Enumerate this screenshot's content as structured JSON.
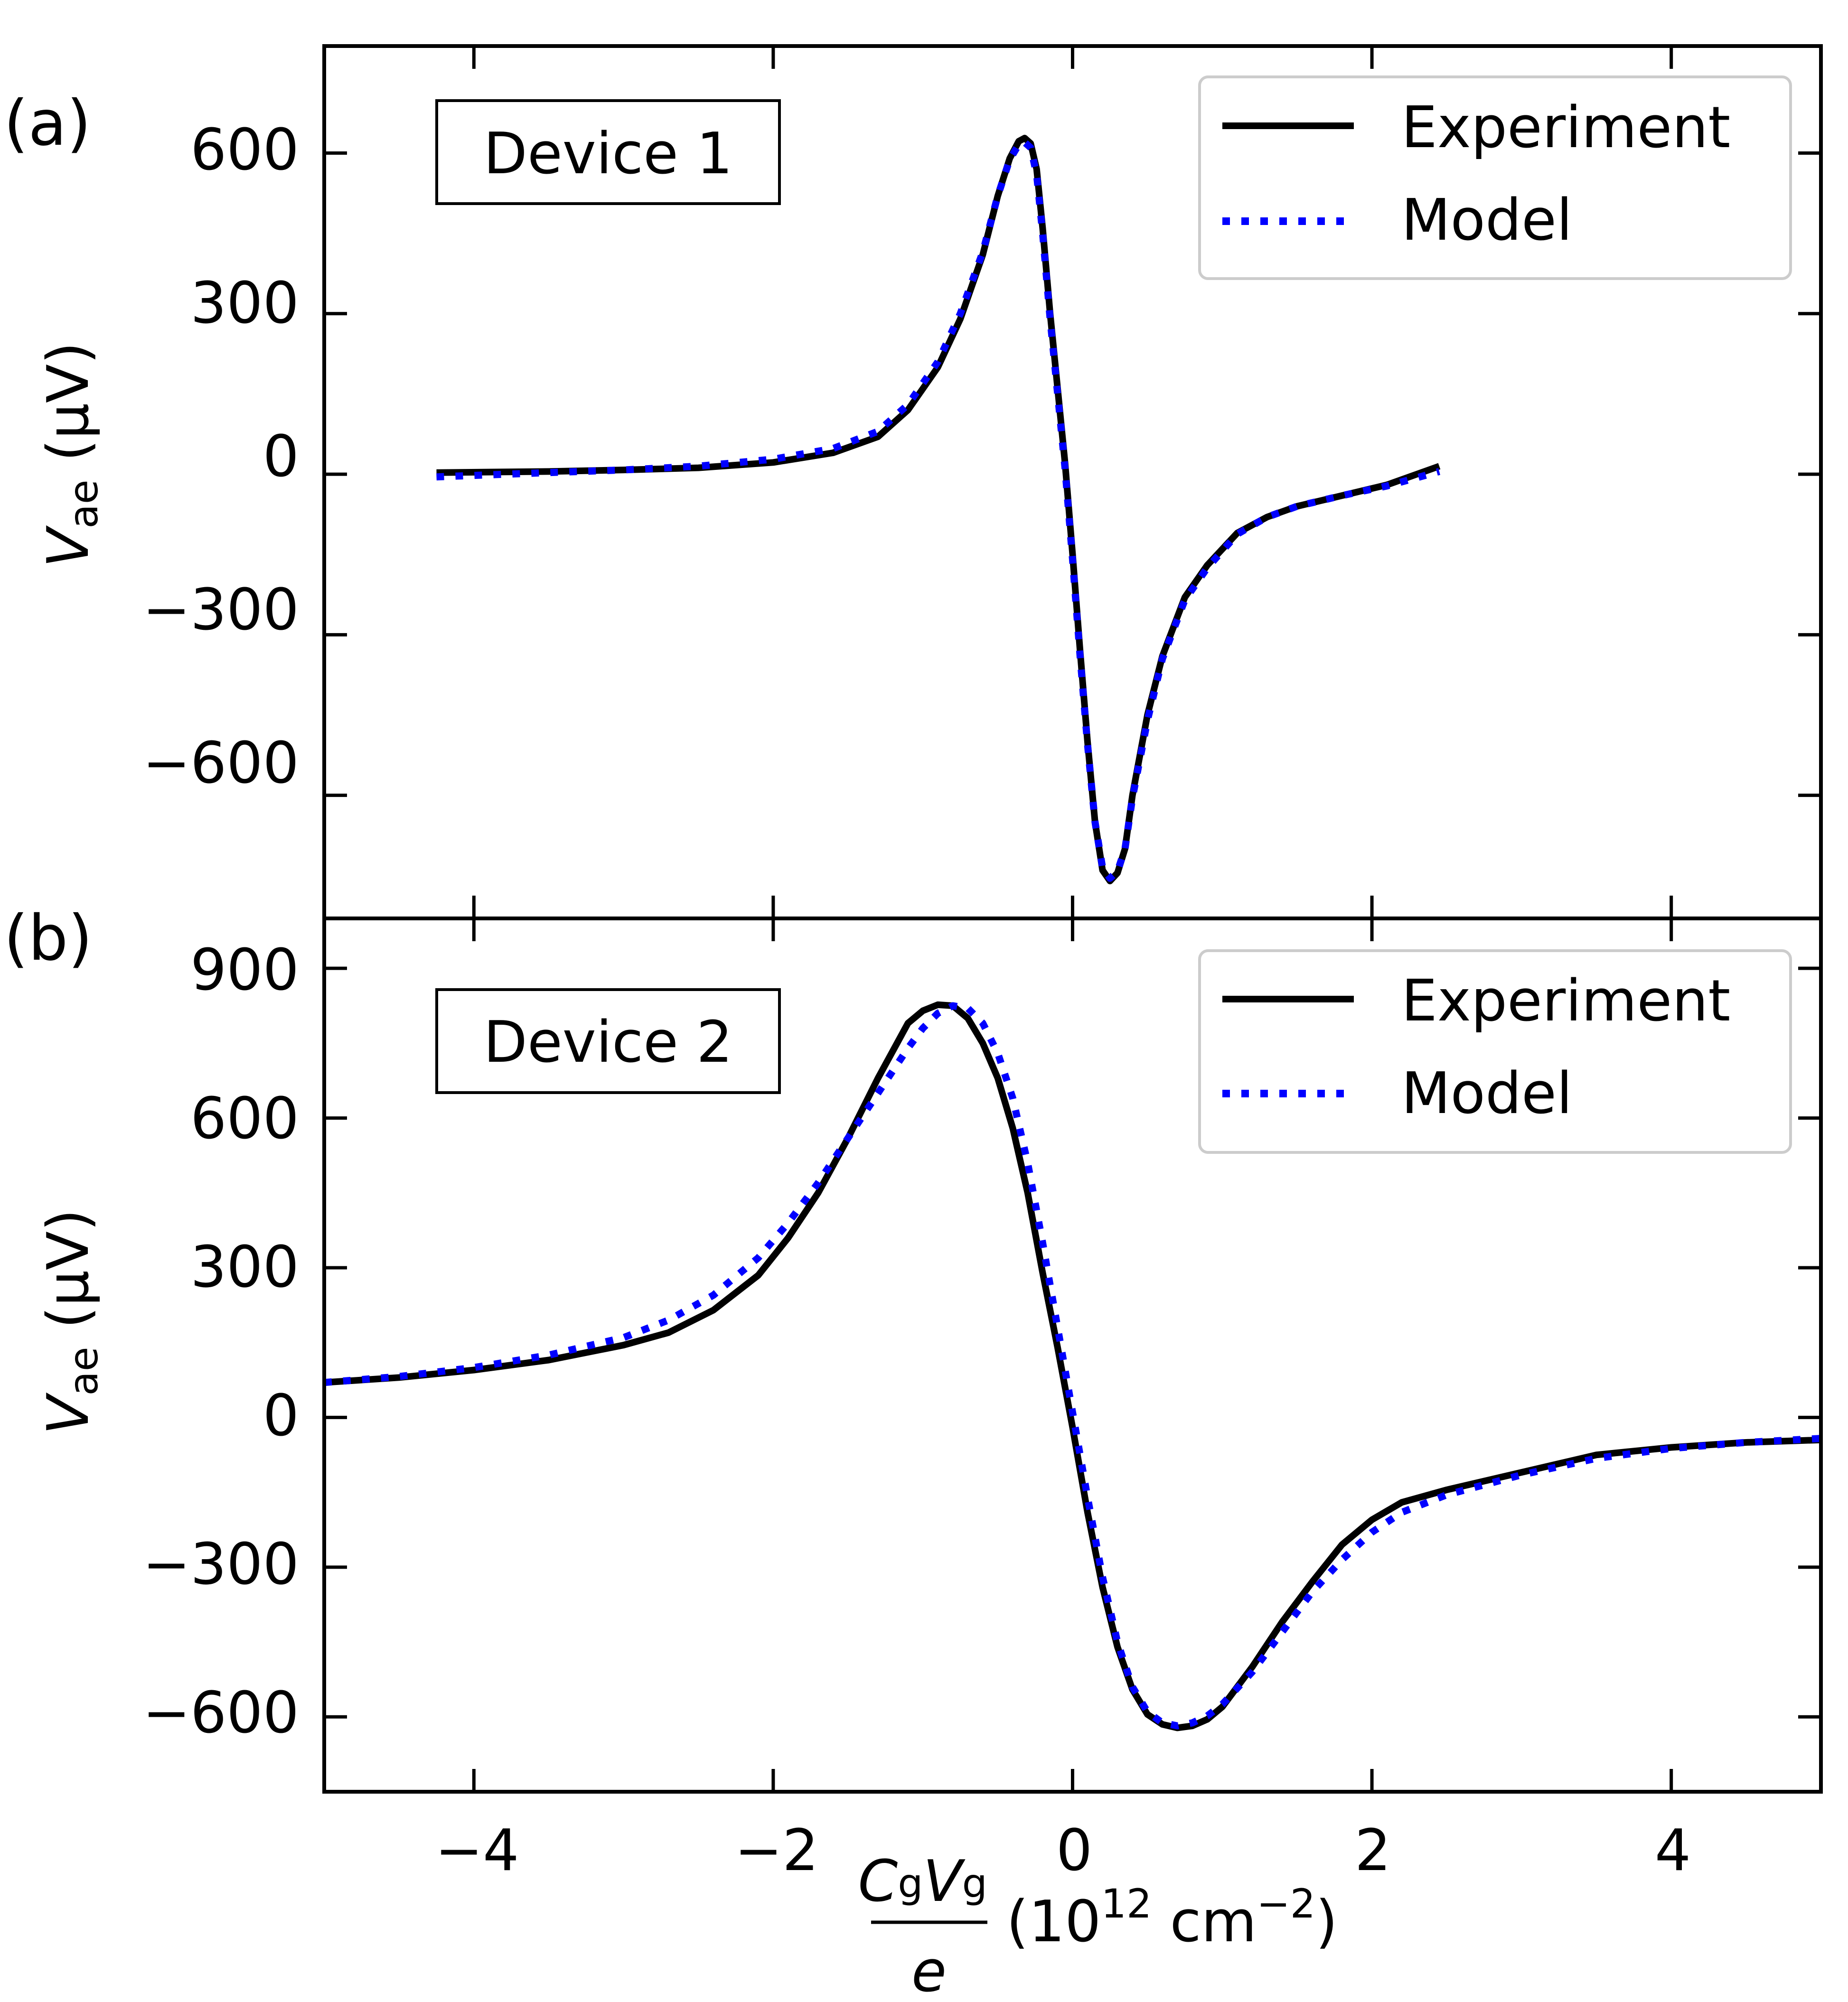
{
  "figure": {
    "x_axis_label": {
      "numerator_c": "C",
      "numerator_c_sub": "g",
      "numerator_v": "V",
      "numerator_v_sub": "g",
      "denominator": "e",
      "units_open": "(10",
      "units_exp": "12",
      "units_mid": " cm",
      "units_exp2": "−2",
      "units_close": ")"
    },
    "y_axis_label": {
      "symbol": "V",
      "subscript": "ae",
      "units": " (μV)"
    },
    "colors": {
      "experiment": "#000000",
      "model": "#0000ff",
      "axes": "#000000"
    }
  },
  "chart_data": [
    {
      "type": "line",
      "panel_label": "(a)",
      "annotation": "Device 1",
      "xlim": [
        -5,
        5
      ],
      "ylim": [
        -830,
        800
      ],
      "xticks": [
        -4,
        -2,
        0,
        2,
        4
      ],
      "yticks": [
        600,
        300,
        0,
        -300,
        -600
      ],
      "ytick_labels": [
        "600",
        "300",
        "0",
        "−300",
        "−600"
      ],
      "show_x_tick_labels": false,
      "grid": false,
      "legend": {
        "placement": "top-right",
        "entries": [
          "Experiment",
          "Model"
        ]
      },
      "series": [
        {
          "name": "Experiment",
          "style": "solid",
          "x": [
            -4.25,
            -3.5,
            -3.0,
            -2.5,
            -2.0,
            -1.6,
            -1.3,
            -1.1,
            -0.9,
            -0.75,
            -0.6,
            -0.5,
            -0.42,
            -0.36,
            -0.32,
            -0.28,
            -0.24,
            -0.2,
            -0.15,
            -0.1,
            -0.05,
            0.0,
            0.05,
            0.1,
            0.15,
            0.2,
            0.25,
            0.3,
            0.35,
            0.4,
            0.5,
            0.6,
            0.75,
            0.9,
            1.1,
            1.3,
            1.5,
            1.8,
            2.1,
            2.45
          ],
          "y": [
            3,
            5,
            8,
            12,
            22,
            40,
            70,
            120,
            200,
            290,
            410,
            520,
            590,
            622,
            628,
            618,
            570,
            460,
            300,
            160,
            20,
            -150,
            -330,
            -500,
            -650,
            -740,
            -760,
            -745,
            -700,
            -600,
            -450,
            -340,
            -230,
            -170,
            -110,
            -80,
            -60,
            -40,
            -20,
            15
          ]
        },
        {
          "name": "Model",
          "style": "dotted",
          "x": [
            -4.25,
            -3.5,
            -3.0,
            -2.5,
            -2.0,
            -1.6,
            -1.3,
            -1.1,
            -0.9,
            -0.75,
            -0.6,
            -0.5,
            -0.42,
            -0.36,
            -0.32,
            -0.28,
            -0.24,
            -0.2,
            -0.15,
            -0.1,
            -0.05,
            0.0,
            0.05,
            0.1,
            0.15,
            0.2,
            0.25,
            0.3,
            0.35,
            0.4,
            0.5,
            0.6,
            0.75,
            0.9,
            1.1,
            1.3,
            1.5,
            1.8,
            2.1,
            2.45
          ],
          "y": [
            -5,
            3,
            8,
            15,
            28,
            48,
            80,
            130,
            210,
            300,
            415,
            520,
            588,
            616,
            620,
            610,
            560,
            450,
            290,
            150,
            10,
            -160,
            -340,
            -505,
            -650,
            -735,
            -755,
            -742,
            -700,
            -605,
            -460,
            -345,
            -235,
            -175,
            -112,
            -80,
            -60,
            -40,
            -22,
            5
          ]
        }
      ]
    },
    {
      "type": "line",
      "panel_label": "(b)",
      "annotation": "Device 2",
      "xlim": [
        -5,
        5
      ],
      "ylim": [
        -750,
        1000
      ],
      "xticks": [
        -4,
        -2,
        0,
        2,
        4
      ],
      "xtick_labels": [
        "−4",
        "−2",
        "0",
        "2",
        "4"
      ],
      "yticks": [
        900,
        600,
        300,
        0,
        -300,
        -600
      ],
      "ytick_labels": [
        "900",
        "600",
        "300",
        "0",
        "−300",
        "−600"
      ],
      "show_x_tick_labels": true,
      "grid": false,
      "legend": {
        "placement": "top-right",
        "entries": [
          "Experiment",
          "Model"
        ]
      },
      "series": [
        {
          "name": "Experiment",
          "style": "solid",
          "x": [
            -5.0,
            -4.5,
            -4.0,
            -3.5,
            -3.0,
            -2.7,
            -2.4,
            -2.1,
            -1.9,
            -1.7,
            -1.5,
            -1.3,
            -1.1,
            -1.0,
            -0.9,
            -0.8,
            -0.7,
            -0.6,
            -0.5,
            -0.4,
            -0.3,
            -0.2,
            -0.1,
            0.0,
            0.1,
            0.2,
            0.3,
            0.4,
            0.5,
            0.6,
            0.7,
            0.8,
            0.9,
            1.0,
            1.2,
            1.4,
            1.6,
            1.8,
            2.0,
            2.2,
            2.5,
            3.0,
            3.5,
            4.0,
            4.5,
            5.0
          ],
          "y": [
            70,
            80,
            95,
            115,
            145,
            170,
            215,
            285,
            360,
            450,
            560,
            680,
            790,
            815,
            827,
            825,
            800,
            750,
            680,
            580,
            450,
            290,
            140,
            -20,
            -190,
            -340,
            -460,
            -545,
            -595,
            -615,
            -622,
            -618,
            -605,
            -580,
            -500,
            -410,
            -330,
            -255,
            -205,
            -170,
            -145,
            -110,
            -75,
            -60,
            -50,
            -45
          ]
        },
        {
          "name": "Model",
          "style": "dotted",
          "x": [
            -5.0,
            -4.5,
            -4.0,
            -3.5,
            -3.0,
            -2.7,
            -2.4,
            -2.1,
            -1.9,
            -1.7,
            -1.5,
            -1.3,
            -1.1,
            -1.0,
            -0.9,
            -0.8,
            -0.7,
            -0.6,
            -0.5,
            -0.4,
            -0.3,
            -0.2,
            -0.1,
            0.0,
            0.1,
            0.2,
            0.3,
            0.4,
            0.5,
            0.6,
            0.7,
            0.8,
            0.9,
            1.0,
            1.2,
            1.4,
            1.6,
            1.8,
            2.0,
            2.2,
            2.5,
            3.0,
            3.5,
            4.0,
            4.5,
            5.0
          ],
          "y": [
            70,
            82,
            100,
            125,
            160,
            195,
            245,
            320,
            390,
            470,
            560,
            650,
            740,
            780,
            810,
            825,
            820,
            790,
            730,
            640,
            510,
            350,
            180,
            10,
            -160,
            -320,
            -450,
            -540,
            -590,
            -612,
            -618,
            -612,
            -598,
            -575,
            -510,
            -430,
            -350,
            -285,
            -230,
            -190,
            -155,
            -115,
            -82,
            -62,
            -50,
            -42
          ]
        }
      ]
    }
  ]
}
